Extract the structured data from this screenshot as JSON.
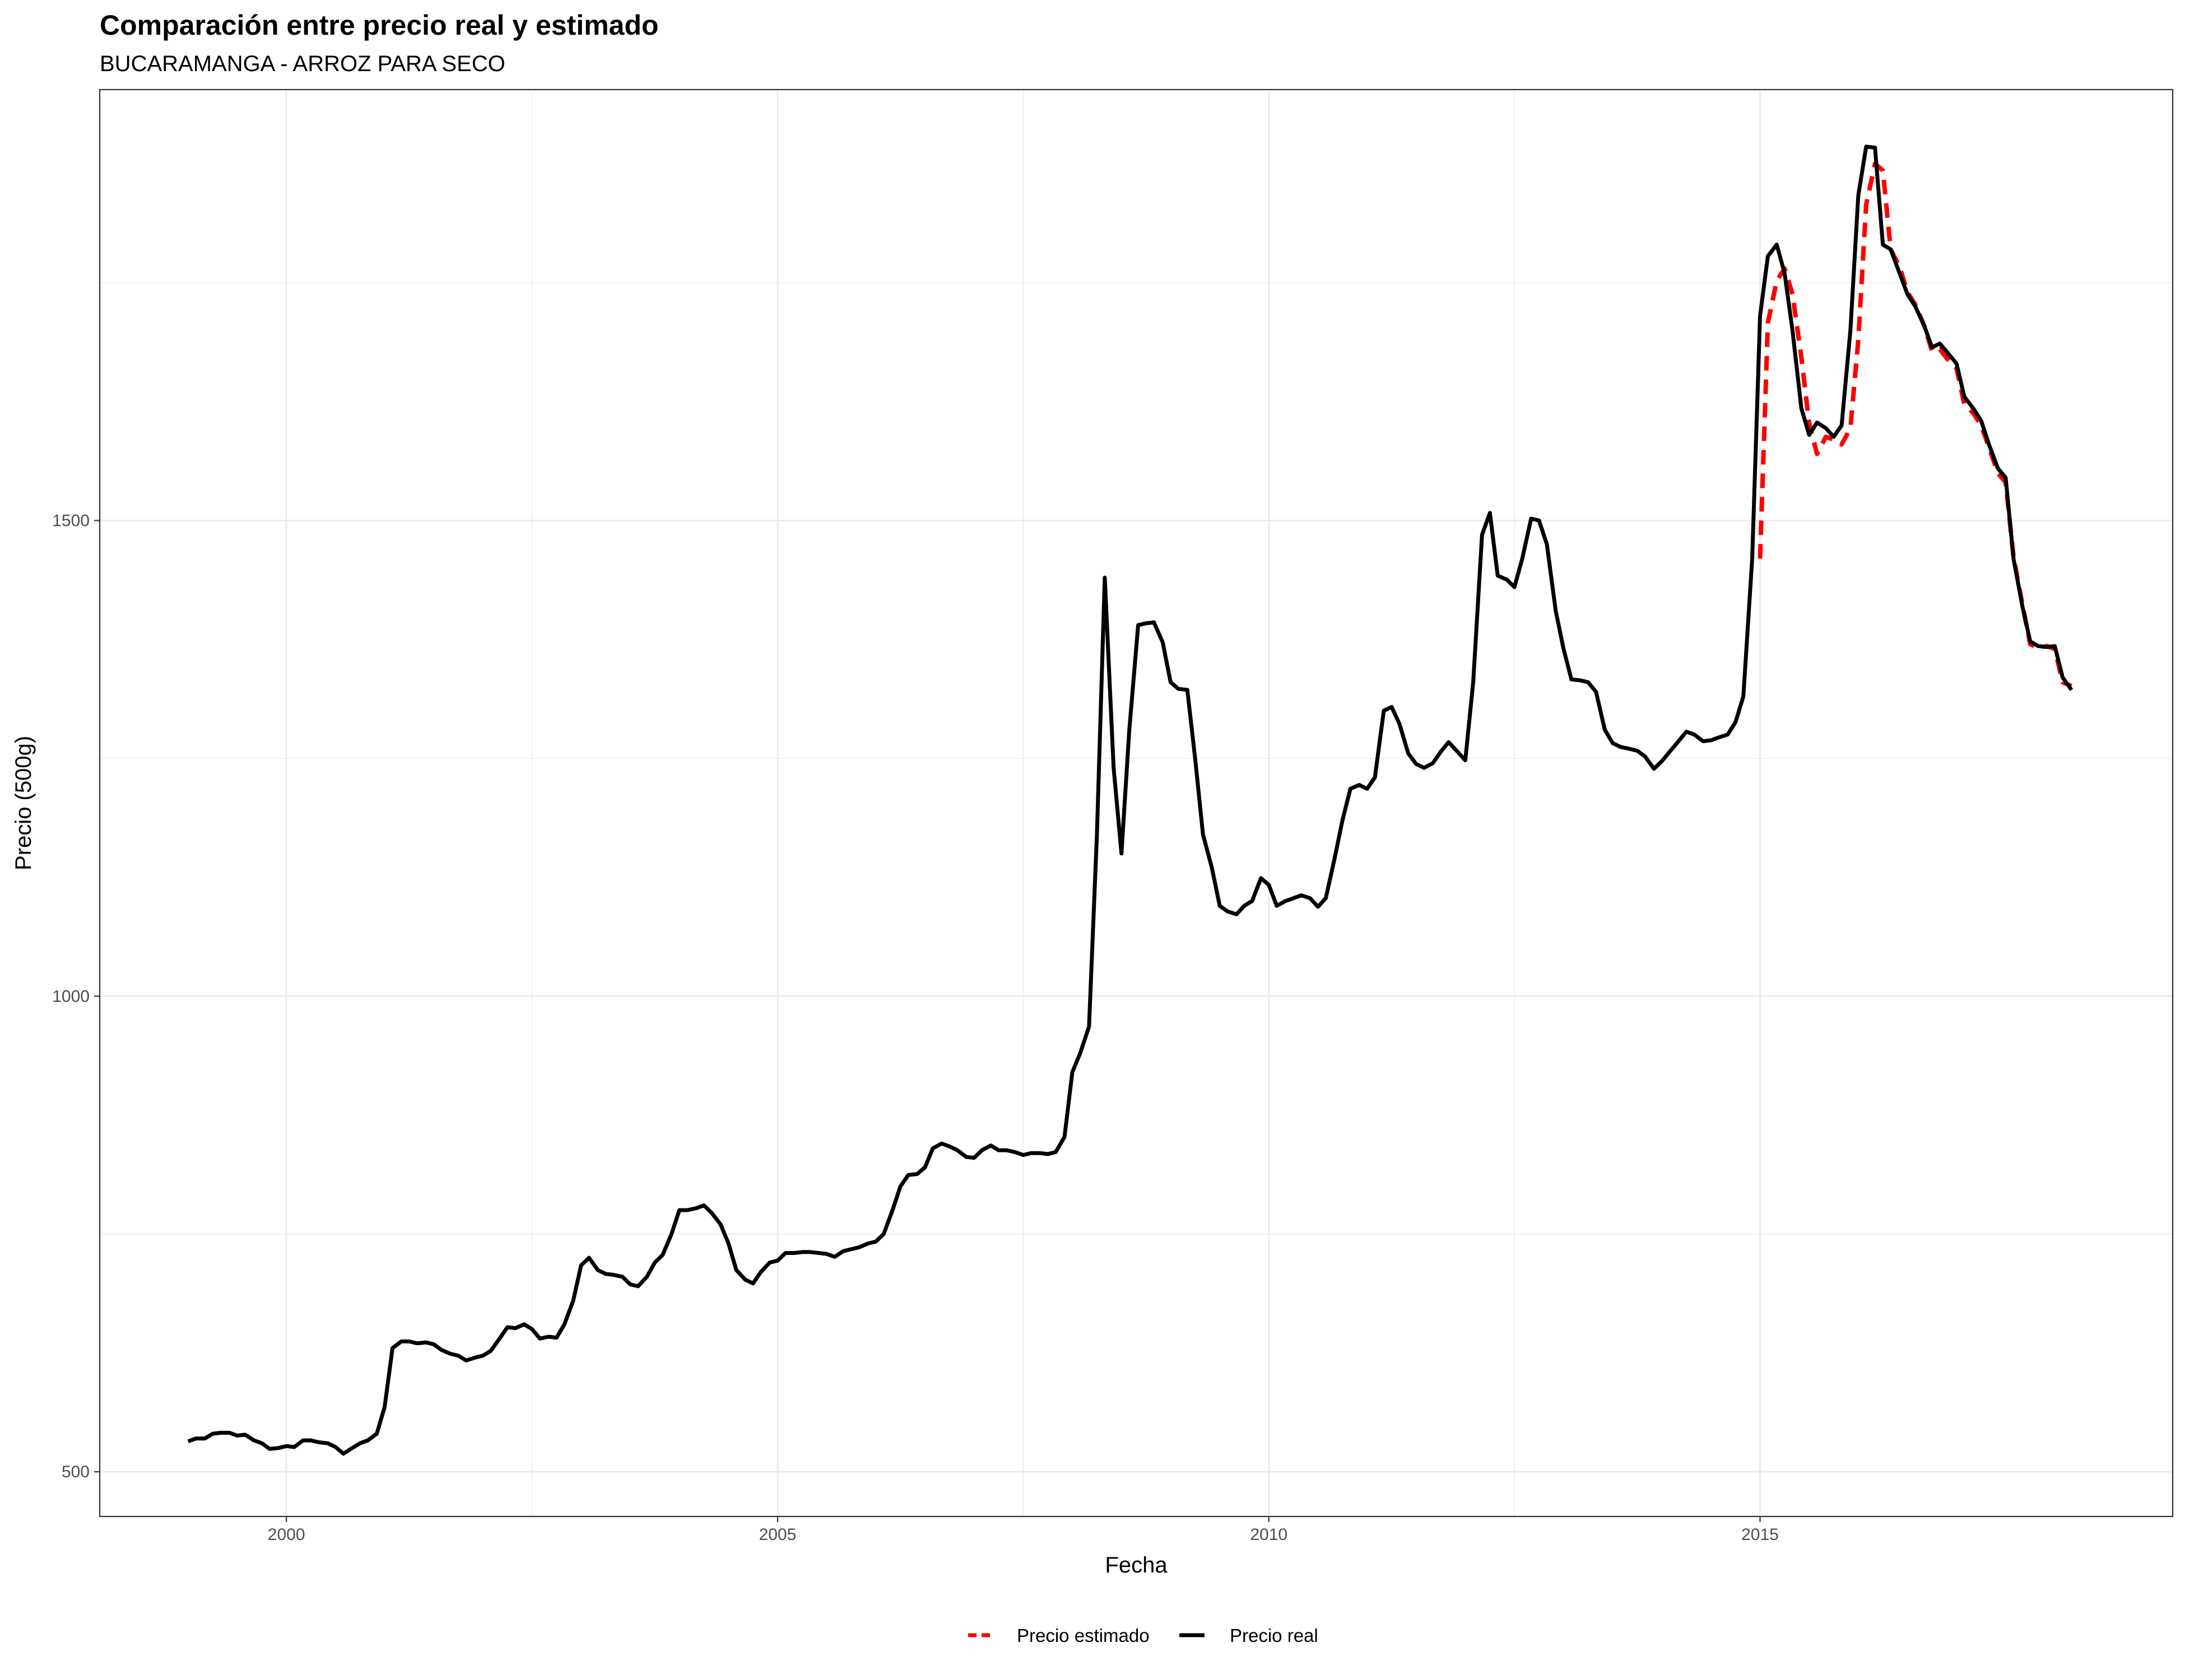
{
  "chart_data": {
    "type": "line",
    "title": "Comparación entre precio real y estimado",
    "subtitle": "BUCARAMANGA - ARROZ PARA SECO",
    "xlabel": "Fecha",
    "ylabel": "Precio (500g)",
    "xlim": [
      1998.1,
      2019.2
    ],
    "ylim": [
      453,
      1953
    ],
    "x_ticks": [
      2000,
      2005,
      2010,
      2015
    ],
    "x_tick_labels": [
      "2000",
      "2005",
      "2010",
      "2015"
    ],
    "y_ticks": [
      500,
      1000,
      1500
    ],
    "y_tick_labels": [
      "500",
      "1000",
      "1500"
    ],
    "grid": true,
    "legend_position": "bottom",
    "colors": {
      "real": "#000000",
      "estimado": "#ff0000",
      "grid": "#ebebeb",
      "panel_border": "#333333"
    },
    "series": [
      {
        "name": "Precio real",
        "style": "solid",
        "x": [
          1999.0,
          1999.08,
          1999.17,
          1999.25,
          1999.33,
          1999.42,
          1999.5,
          1999.58,
          1999.67,
          1999.75,
          1999.83,
          1999.92,
          2000.0,
          2000.08,
          2000.17,
          2000.25,
          2000.33,
          2000.42,
          2000.5,
          2000.58,
          2000.67,
          2000.75,
          2000.83,
          2000.92,
          2001.0,
          2001.08,
          2001.17,
          2001.25,
          2001.33,
          2001.42,
          2001.5,
          2001.58,
          2001.67,
          2001.75,
          2001.83,
          2001.92,
          2002.0,
          2002.08,
          2002.17,
          2002.25,
          2002.33,
          2002.42,
          2002.5,
          2002.58,
          2002.67,
          2002.75,
          2002.83,
          2002.92,
          2003.0,
          2003.08,
          2003.17,
          2003.25,
          2003.33,
          2003.42,
          2003.5,
          2003.58,
          2003.67,
          2003.75,
          2003.83,
          2003.92,
          2004.0,
          2004.08,
          2004.17,
          2004.25,
          2004.33,
          2004.42,
          2004.5,
          2004.58,
          2004.67,
          2004.75,
          2004.83,
          2004.92,
          2005.0,
          2005.08,
          2005.17,
          2005.25,
          2005.33,
          2005.42,
          2005.5,
          2005.58,
          2005.67,
          2005.75,
          2005.83,
          2005.92,
          2006.0,
          2006.08,
          2006.17,
          2006.25,
          2006.33,
          2006.42,
          2006.5,
          2006.58,
          2006.67,
          2006.75,
          2006.83,
          2006.92,
          2007.0,
          2007.08,
          2007.17,
          2007.25,
          2007.33,
          2007.42,
          2007.5,
          2007.58,
          2007.67,
          2007.75,
          2007.83,
          2007.92,
          2008.0,
          2008.08,
          2008.17,
          2008.25,
          2008.33,
          2008.42,
          2008.5,
          2008.58,
          2008.67,
          2008.75,
          2008.83,
          2008.92,
          2009.0,
          2009.08,
          2009.17,
          2009.25,
          2009.33,
          2009.42,
          2009.5,
          2009.58,
          2009.67,
          2009.75,
          2009.83,
          2009.92,
          2010.0,
          2010.08,
          2010.17,
          2010.25,
          2010.33,
          2010.42,
          2010.5,
          2010.58,
          2010.67,
          2010.75,
          2010.83,
          2010.92,
          2011.0,
          2011.08,
          2011.17,
          2011.25,
          2011.33,
          2011.42,
          2011.5,
          2011.58,
          2011.67,
          2011.75,
          2011.83,
          2011.92,
          2012.0,
          2012.08,
          2012.17,
          2012.25,
          2012.33,
          2012.42,
          2012.5,
          2012.58,
          2012.67,
          2012.75,
          2012.83,
          2012.92,
          2013.0,
          2013.08,
          2013.17,
          2013.25,
          2013.33,
          2013.42,
          2013.5,
          2013.58,
          2013.67,
          2013.75,
          2013.83,
          2013.92,
          2014.0,
          2014.08,
          2014.17,
          2014.25,
          2014.33,
          2014.42,
          2014.5,
          2014.58,
          2014.67,
          2014.75,
          2014.83,
          2014.92,
          2015.0,
          2015.08,
          2015.17,
          2015.25,
          2015.33,
          2015.42,
          2015.5,
          2015.58,
          2015.67,
          2015.75,
          2015.83,
          2015.92,
          2016.0,
          2016.08,
          2016.17,
          2016.25,
          2016.33,
          2016.42,
          2016.5,
          2016.58,
          2016.67,
          2016.75,
          2016.83,
          2016.92,
          2017.0,
          2017.08,
          2017.17,
          2017.25,
          2017.33,
          2017.42,
          2017.5,
          2017.58,
          2017.67,
          2017.75,
          2017.83,
          2017.92,
          2018.0,
          2018.08,
          2018.17
        ],
        "values": [
          532,
          535,
          535,
          540,
          541,
          541,
          538,
          539,
          533,
          530,
          524,
          525,
          527,
          526,
          533,
          533,
          531,
          530,
          526,
          519,
          525,
          530,
          533,
          540,
          568,
          630,
          637,
          637,
          635,
          636,
          634,
          628,
          624,
          622,
          617,
          620,
          622,
          627,
          640,
          652,
          651,
          655,
          650,
          640,
          642,
          641,
          655,
          680,
          717,
          725,
          712,
          708,
          707,
          705,
          697,
          695,
          705,
          720,
          728,
          750,
          775,
          775,
          777,
          780,
          772,
          760,
          740,
          712,
          702,
          698,
          710,
          720,
          722,
          730,
          730,
          731,
          731,
          730,
          729,
          726,
          732,
          734,
          736,
          740,
          742,
          750,
          775,
          800,
          812,
          813,
          820,
          840,
          845,
          842,
          838,
          831,
          830,
          838,
          843,
          838,
          838,
          836,
          833,
          835,
          835,
          834,
          836,
          852,
          920,
          940,
          968,
          1170,
          1440,
          1240,
          1150,
          1280,
          1390,
          1392,
          1393,
          1372,
          1330,
          1323,
          1322,
          1250,
          1170,
          1135,
          1095,
          1089,
          1086,
          1095,
          1100,
          1124,
          1117,
          1095,
          1100,
          1103,
          1106,
          1103,
          1094,
          1103,
          1145,
          1185,
          1218,
          1222,
          1218,
          1230,
          1300,
          1304,
          1286,
          1255,
          1244,
          1240,
          1245,
          1257,
          1267,
          1257,
          1248,
          1330,
          1485,
          1508,
          1442,
          1438,
          1430,
          1460,
          1502,
          1500,
          1475,
          1405,
          1365,
          1333,
          1332,
          1330,
          1320,
          1280,
          1266,
          1262,
          1260,
          1258,
          1252,
          1239,
          1247,
          1257,
          1268,
          1278,
          1275,
          1268,
          1269,
          1272,
          1275,
          1288,
          1315,
          1460,
          1715,
          1778,
          1790,
          1760,
          1700,
          1618,
          1590,
          1603,
          1597,
          1588,
          1600,
          1700,
          1842,
          1893,
          1892,
          1790,
          1785,
          1760,
          1738,
          1725,
          1705,
          1682,
          1686,
          1675,
          1665,
          1630,
          1618,
          1605,
          1580,
          1555,
          1545,
          1460,
          1410,
          1373,
          1368,
          1367,
          1368,
          1335,
          1322
        ]
      },
      {
        "name": "Precio estimado",
        "style": "dashed",
        "x": [
          2015.0,
          2015.08,
          2015.17,
          2015.25,
          2015.33,
          2015.42,
          2015.5,
          2015.58,
          2015.67,
          2015.75,
          2015.83,
          2015.92,
          2016.0,
          2016.08,
          2016.17,
          2016.25,
          2016.33,
          2016.42,
          2016.5,
          2016.58,
          2016.67,
          2016.75,
          2016.83,
          2016.92,
          2017.0,
          2017.08,
          2017.17,
          2017.25,
          2017.33,
          2017.42,
          2017.5,
          2017.58,
          2017.67,
          2017.75,
          2017.83,
          2017.92,
          2018.0,
          2018.08,
          2018.17
        ],
        "values": [
          1460,
          1708,
          1752,
          1765,
          1738,
          1672,
          1602,
          1570,
          1588,
          1585,
          1580,
          1597,
          1690,
          1832,
          1875,
          1868,
          1785,
          1767,
          1740,
          1727,
          1705,
          1678,
          1680,
          1668,
          1660,
          1622,
          1613,
          1600,
          1577,
          1550,
          1540,
          1462,
          1412,
          1370,
          1366,
          1368,
          1365,
          1330,
          1326
        ]
      }
    ]
  }
}
